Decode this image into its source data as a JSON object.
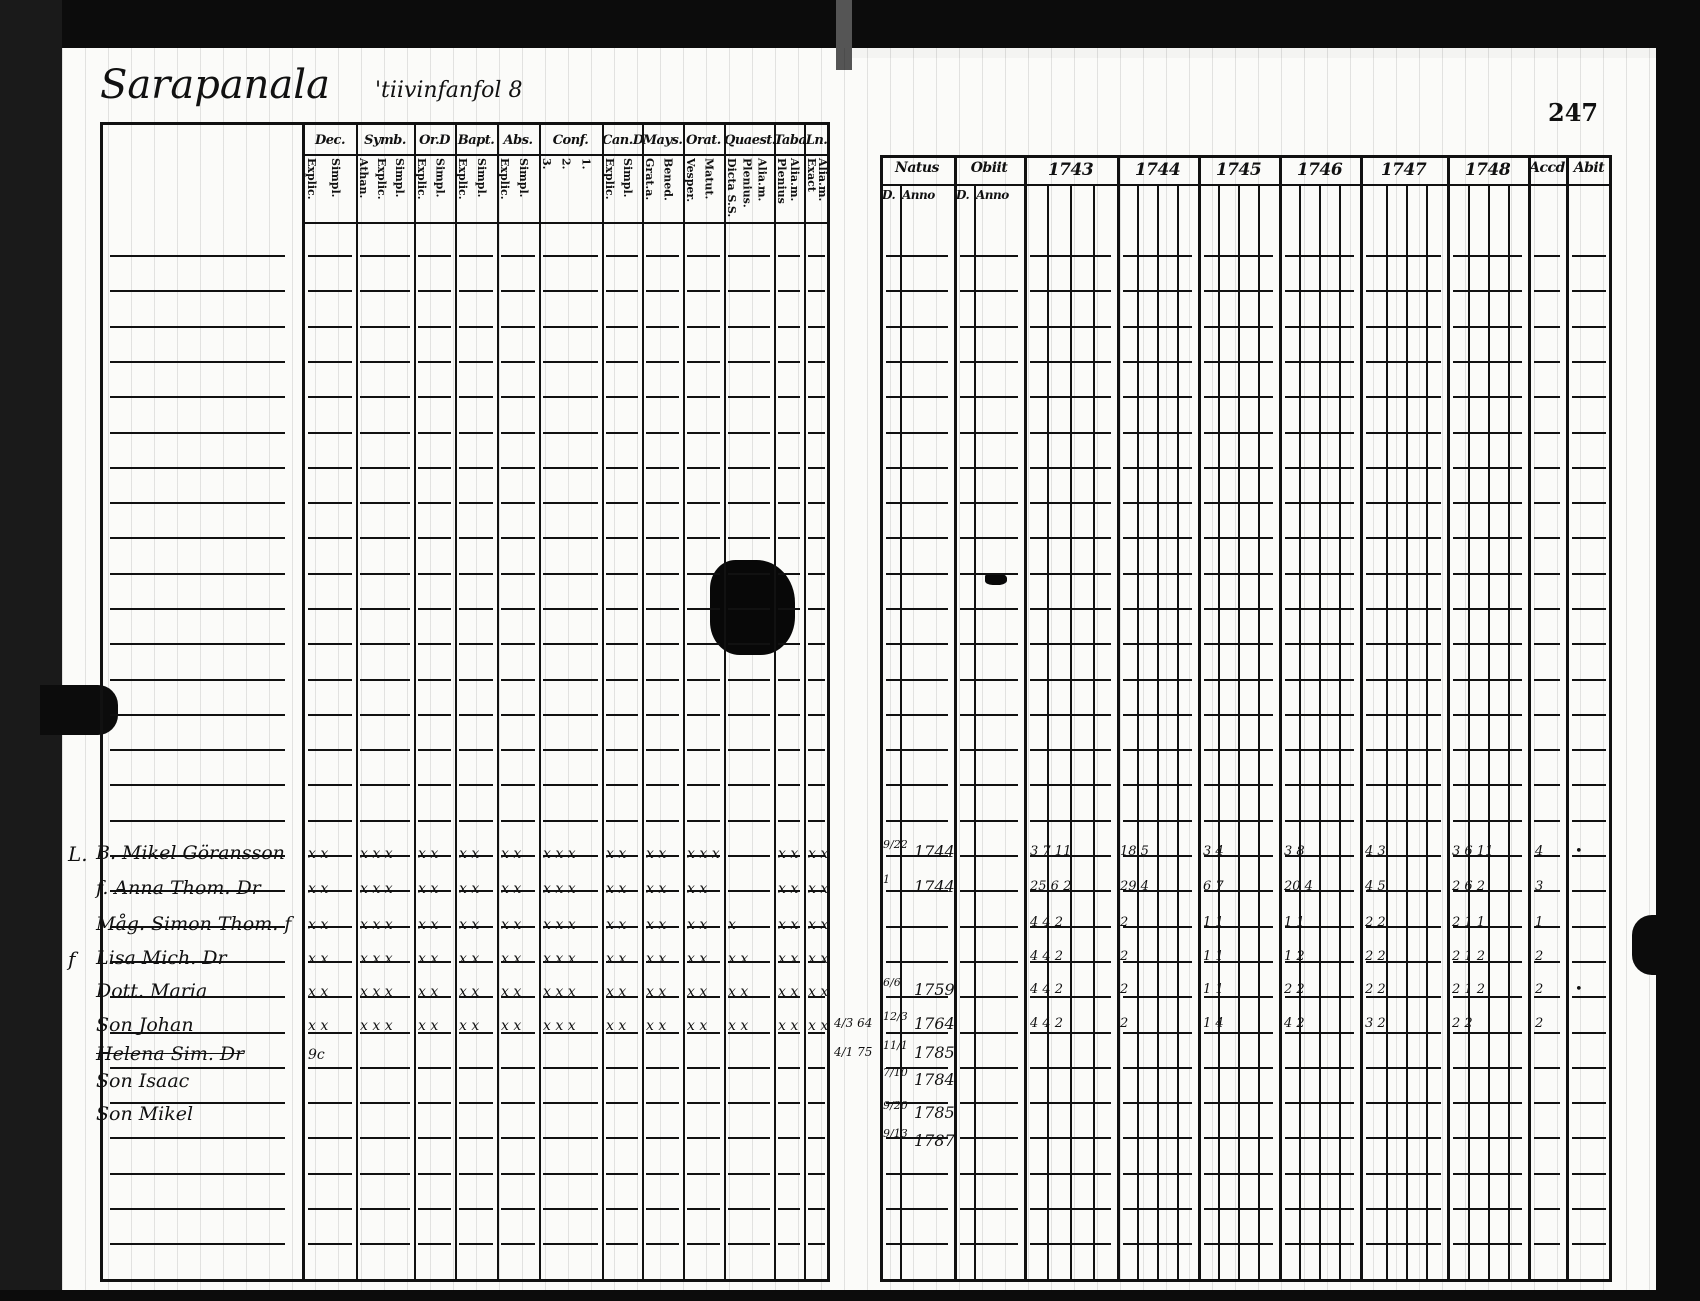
{
  "left_page": {
    "title": "Sarapanala",
    "title_note": "'tiivinfanfol 8",
    "headers": [
      {
        "label": "Dec.",
        "sub": [
          "Explic.",
          "Simpl."
        ]
      },
      {
        "label": "Symb.",
        "sub": [
          "Athan.",
          "Explic.",
          "Simpl."
        ]
      },
      {
        "label": "Or.D",
        "sub": [
          "Explic.",
          "Simpl."
        ]
      },
      {
        "label": "Bapt.",
        "sub": [
          "Explic.",
          "Simpl."
        ]
      },
      {
        "label": "Abs.",
        "sub": [
          "Explic.",
          "Simpl."
        ]
      },
      {
        "label": "Conf.",
        "sub": [
          "3.",
          "2.",
          "1."
        ]
      },
      {
        "label": "Can.D",
        "sub": [
          "Explic.",
          "Simpl."
        ]
      },
      {
        "label": "Mays.",
        "sub": [
          "Grat.a.",
          "Bened."
        ]
      },
      {
        "label": "Orat.",
        "sub": [
          "Vesper.",
          "Matut."
        ]
      },
      {
        "label": "Quaest.",
        "sub": [
          "Dicta S.S.",
          "Plenius.",
          "Alia.m."
        ]
      },
      {
        "label": "Taba",
        "sub": [
          "Plenius",
          "Alia.m."
        ]
      },
      {
        "label": "Ln.",
        "sub": [
          "Exact",
          "Alia.m."
        ]
      }
    ],
    "rows": [
      {
        "prefix": "L.",
        "name": "B. Mikel Göransson",
        "marks": [
          "x x",
          "x x x",
          "x x",
          "x x",
          "x x",
          "x x x",
          "x x",
          "x x",
          "x x x",
          "",
          "x x",
          "x x"
        ]
      },
      {
        "prefix": "",
        "name": "f. Anna Thom. Dr",
        "marks": [
          "x x",
          "x x x",
          "x x",
          "x x",
          "x x",
          "x x x",
          "x x",
          "x x",
          "x x",
          "",
          "x x",
          "x x"
        ]
      },
      {
        "prefix": "",
        "name": "Måg. Simon Thom. f",
        "marks": [
          "x x",
          "x x x",
          "x x",
          "x x",
          "x x",
          "x x x",
          "x x",
          "x x",
          "x x",
          "x",
          "x x",
          "x x"
        ]
      },
      {
        "prefix": "f",
        "name": "Lisa Mich. Dr",
        "marks": [
          "x x",
          "x x x",
          "x x",
          "x x",
          "x x",
          "x x x",
          "x x",
          "x x",
          "x x",
          "x x",
          "x x",
          "x x"
        ]
      },
      {
        "prefix": "",
        "name": "Dott. Maria",
        "marks": [
          "x x",
          "x x x",
          "x x",
          "x x",
          "x x",
          "x x x",
          "x x",
          "x x",
          "x x",
          "x x",
          "x x",
          "x x"
        ]
      },
      {
        "prefix": "",
        "name": "Son Johan",
        "marks": [
          "x x",
          "x x x",
          "x x",
          "x x",
          "x x",
          "x x x",
          "x x",
          "x x",
          "x x",
          "x x",
          "x x",
          "x x"
        ]
      },
      {
        "prefix": "",
        "name": "Helena Sim. Dr",
        "marks": [
          "9c",
          "",
          "",
          "",
          "",
          "",
          "",
          "",
          "",
          "",
          "",
          ""
        ],
        "struck": true
      },
      {
        "prefix": "",
        "name": "Son Isaac",
        "marks": []
      },
      {
        "prefix": "",
        "name": "Son Mikel",
        "marks": []
      }
    ]
  },
  "right_page": {
    "page_number": "247",
    "headers": [
      "Natus",
      "Obiit",
      "1743",
      "1744",
      "1745",
      "1746",
      "1747",
      "1748",
      "Accd",
      "Abit"
    ],
    "subheaders": [
      "D.",
      "Anno",
      "D.",
      "Anno"
    ],
    "rows": [
      {
        "margin": "",
        "d": "9/22",
        "anno": "1744",
        "cells": [
          "3 7 11",
          "18 5",
          "3 4",
          "3 8",
          "4 3",
          "3 6 11",
          "4",
          "•"
        ]
      },
      {
        "margin": "",
        "d": "1",
        "anno": "1744",
        "cells": [
          "25 6 2",
          "29 4",
          "6 7",
          "20 4",
          "4 5",
          "2 6 2",
          "3",
          ""
        ]
      },
      {
        "margin": "",
        "d": "",
        "anno": "",
        "cells": [
          "4 4 2",
          "2",
          "1 1",
          "1 1",
          "2 2",
          "2 1 1",
          "1",
          ""
        ]
      },
      {
        "margin": "",
        "d": "",
        "anno": "",
        "cells": [
          "4 4 2",
          "2",
          "1 1",
          "1 2",
          "2 2",
          "2 1 2",
          "2",
          ""
        ]
      },
      {
        "margin": "",
        "d": "6/6",
        "anno": "1759",
        "cells": [
          "4 4 2",
          "2",
          "1 1",
          "2 2",
          "2 2",
          "2 1 2",
          "2",
          "•"
        ]
      },
      {
        "margin": "4/3 64",
        "d": "12/3",
        "anno": "1764",
        "cells": [
          "4 4 2",
          "2",
          "1 4",
          "4 2",
          "3 2",
          "2 2",
          "2",
          ""
        ]
      },
      {
        "margin": "4/1 75",
        "d": "11/1",
        "anno": "1785",
        "cells": [
          "",
          "",
          "",
          "",
          "",
          "",
          "",
          ""
        ]
      },
      {
        "margin": "",
        "d": "7/10",
        "anno": "1784",
        "cells": [
          "",
          "",
          "",
          "",
          "",
          "",
          "",
          ""
        ]
      },
      {
        "margin": "",
        "d": "9/20",
        "anno": "1785",
        "cells": [
          "",
          "",
          "",
          "",
          "",
          "",
          "",
          ""
        ]
      },
      {
        "margin": "",
        "d": "9/13",
        "anno": "1787",
        "cells": [
          "",
          "",
          "",
          "",
          "",
          "",
          "",
          ""
        ]
      }
    ]
  }
}
